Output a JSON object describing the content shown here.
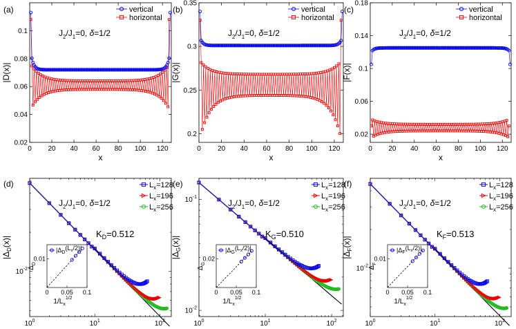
{
  "figure_panels": [
    "(a)",
    "(b)",
    "(c)",
    "(d)",
    "(e)",
    "(f)"
  ],
  "chart_data": [
    {
      "panel": "(a)",
      "type": "line",
      "title": "J2/J1=0, δ=1/2",
      "title_parts": {
        "j": "J",
        "two": "2",
        "sep": "/J",
        "one": "1",
        "rest": "=0, ",
        "delta": "δ",
        "end": "=1/2"
      },
      "xlabel": "x",
      "ylabel": "|D(x)|",
      "xlim": [
        0,
        128
      ],
      "ylim": [
        0.02,
        0.12
      ],
      "xticks": [
        0,
        20,
        40,
        60,
        80,
        100,
        120
      ],
      "xtick_labels": [
        "0",
        "20",
        "40",
        "60",
        "80",
        "100",
        "120"
      ],
      "yticks": [
        0.02,
        0.04,
        0.06,
        0.08,
        0.1
      ],
      "ytick_labels": [
        "0.02",
        "0.04",
        "0.06",
        "0.08",
        "0.1"
      ],
      "legend": [
        "vertical",
        "horizontal"
      ],
      "series": [
        {
          "name": "vertical",
          "color": "#0000ee",
          "marker": "circle",
          "profile": {
            "edge": 0.113,
            "edge2": 0.085,
            "bulk": 0.072
          }
        },
        {
          "name": "horizontal",
          "color": "#ee0000",
          "marker": "square",
          "profile": {
            "upper_edge": 0.076,
            "upper_bulk": 0.064,
            "lower_edge": 0.044,
            "lower_bulk": 0.058,
            "start": 0.108
          }
        }
      ]
    },
    {
      "panel": "(b)",
      "type": "line",
      "title": "J2/J1=0, δ=1/2",
      "title_parts": {
        "j": "J",
        "two": "2",
        "sep": "/J",
        "one": "1",
        "rest": "=0, ",
        "delta": "δ",
        "end": "=1/2"
      },
      "xlabel": "x",
      "ylabel": "|G(x)|",
      "xlim": [
        0,
        128
      ],
      "ylim": [
        0.19,
        0.35
      ],
      "xticks": [
        0,
        20,
        40,
        60,
        80,
        100,
        120
      ],
      "xtick_labels": [
        "0",
        "20",
        "40",
        "60",
        "80",
        "100",
        "120"
      ],
      "yticks": [
        0.2,
        0.25,
        0.3,
        0.35
      ],
      "ytick_labels": [
        "0.2",
        "0.25",
        "0.3",
        "0.35"
      ],
      "legend": [
        "vertical",
        "horizontal"
      ],
      "series": [
        {
          "name": "vertical",
          "color": "#0000ee",
          "marker": "circle",
          "profile": {
            "edge": 0.34,
            "edge2": 0.31,
            "bulk": 0.301
          }
        },
        {
          "name": "horizontal",
          "color": "#ee0000",
          "marker": "square",
          "profile": {
            "upper_edge": 0.283,
            "upper_bulk": 0.268,
            "lower_edge": 0.195,
            "lower_bulk": 0.244,
            "start": 0.33
          }
        }
      ]
    },
    {
      "panel": "(c)",
      "type": "line",
      "title": "J2/J1=0, δ=1/2",
      "title_parts": {
        "j": "J",
        "two": "2",
        "sep": "/J",
        "one": "1",
        "rest": "=0, ",
        "delta": "δ",
        "end": "=1/2"
      },
      "xlabel": "x",
      "ylabel": "|F(x)|",
      "xlim": [
        0,
        128
      ],
      "ylim": [
        0.01,
        0.18
      ],
      "xticks": [
        0,
        20,
        40,
        60,
        80,
        100,
        120
      ],
      "xtick_labels": [
        "0",
        "20",
        "40",
        "60",
        "80",
        "100",
        "120"
      ],
      "yticks": [
        0.02,
        0.06,
        0.1,
        0.14,
        0.18
      ],
      "ytick_labels": [
        "0.02",
        "0.06",
        "0.1",
        "0.14",
        "0.18"
      ],
      "legend": [
        "vertical",
        "horizontal"
      ],
      "series": [
        {
          "name": "vertical",
          "color": "#0000ee",
          "marker": "circle",
          "profile": {
            "edge": 0.105,
            "edge2": 0.12,
            "bulk": 0.125
          }
        },
        {
          "name": "horizontal",
          "color": "#ee0000",
          "marker": "square",
          "profile": {
            "upper_edge": 0.038,
            "upper_bulk": 0.032,
            "lower_edge": 0.016,
            "lower_bulk": 0.024,
            "start": 0.03
          }
        }
      ]
    },
    {
      "panel": "(d)",
      "type": "scatter",
      "title": "J2/J1=0, δ=1/2",
      "title_parts": {
        "j": "J",
        "two": "2",
        "sep": "/J",
        "one": "1",
        "rest": "=0, ",
        "delta": "δ",
        "end": "=1/2"
      },
      "xlabel": "x",
      "ylabel": "|ΔD(x)|",
      "ylabel_main": "|Δ",
      "ylabel_sub": "D",
      "ylabel_tail": "(x)|",
      "xscale": "log",
      "yscale": "log",
      "xlim": [
        1,
        150
      ],
      "ylim": [
        0.0045,
        0.052
      ],
      "xticks": [
        1,
        10,
        100
      ],
      "xtick_labels": [
        [
          "10",
          "0"
        ],
        [
          "10",
          "1"
        ],
        [
          "10",
          "2"
        ]
      ],
      "yticks": [
        0.01
      ],
      "ytick_labels": [
        [
          "10",
          "-2"
        ]
      ],
      "legend": [
        [
          "L",
          "x",
          "=128"
        ],
        [
          "L",
          "x",
          "=196"
        ],
        [
          "L",
          "x",
          "=256"
        ]
      ],
      "exponent_label": {
        "main": "K",
        "sub": "D",
        "rest": "=0.512"
      },
      "fit": {
        "amplitude": 0.0478,
        "exponent": 0.512
      },
      "series": [
        {
          "name": "Lx=128",
          "color": "#0000ee",
          "marker": "square",
          "xmax": 64,
          "tail_boost": 0.45
        },
        {
          "name": "Lx=196",
          "color": "#ee0000",
          "marker": "triangle-right",
          "xmax": 98,
          "tail_boost": 0.35
        },
        {
          "name": "Lx=256",
          "color": "#22bb22",
          "marker": "circle",
          "xmax": 128,
          "tail_boost": 0.28
        }
      ],
      "inset": {
        "xlabel_parts": [
          "1/L",
          "x",
          "1/2"
        ],
        "ylabel_main": "Δ",
        "ylabel_sub": "D",
        "legend_parts": [
          "|Δ",
          "D",
          "(L",
          "x",
          "/2)|"
        ],
        "xlim": [
          0,
          0.1
        ],
        "ylim": [
          0,
          0.015
        ],
        "xticks": [
          0,
          0.05,
          0.1
        ],
        "xtick_labels": [
          "0",
          "0.05",
          "0.1"
        ],
        "yticks": [
          0.01
        ],
        "ytick_labels": [
          "0.01"
        ],
        "x": [
          0.0625,
          0.0714,
          0.0801,
          0.0884
        ],
        "y": [
          0.0097,
          0.0111,
          0.0124,
          0.0137
        ]
      }
    },
    {
      "panel": "(e)",
      "type": "scatter",
      "title": "J2/J1=0, δ=1/2",
      "title_parts": {
        "j": "J",
        "two": "2",
        "sep": "/J",
        "one": "1",
        "rest": "=0, ",
        "delta": "δ",
        "end": "=1/2"
      },
      "xlabel": "x",
      "ylabel": "|ΔG(x)|",
      "ylabel_main": "|Δ",
      "ylabel_sub": "G",
      "ylabel_tail": "(x)|",
      "xscale": "log",
      "yscale": "log",
      "xlim": [
        1,
        150
      ],
      "ylim": [
        0.0088,
        0.155
      ],
      "xticks": [
        1,
        10,
        100
      ],
      "xtick_labels": [
        [
          "10",
          "0"
        ],
        [
          "10",
          "1"
        ],
        [
          "10",
          "2"
        ]
      ],
      "yticks": [
        0.01,
        0.1
      ],
      "ytick_labels": [
        [
          "10",
          "-2"
        ],
        [
          "10",
          "-1"
        ]
      ],
      "legend": [
        [
          "L",
          "x",
          "=128"
        ],
        [
          "L",
          "x",
          "=196"
        ],
        [
          "L",
          "x",
          "=256"
        ]
      ],
      "exponent_label": {
        "main": "K",
        "sub": "G",
        "rest": "=0.510"
      },
      "fit": {
        "amplitude": 0.142,
        "exponent": 0.51
      },
      "series": [
        {
          "name": "Lx=128",
          "color": "#0000ee",
          "marker": "square",
          "xmax": 64,
          "tail_boost": 0.45
        },
        {
          "name": "Lx=196",
          "color": "#ee0000",
          "marker": "triangle-right",
          "xmax": 98,
          "tail_boost": 0.35
        },
        {
          "name": "Lx=256",
          "color": "#22bb22",
          "marker": "circle",
          "xmax": 128,
          "tail_boost": 0.28
        }
      ],
      "inset": {
        "xlabel_parts": [
          "1/L",
          "x",
          "1/2"
        ],
        "ylabel_main": "Δ",
        "ylabel_sub": "G",
        "legend_parts": [
          "|Δ",
          "G",
          "(L",
          "x",
          "/2)|"
        ],
        "xlim": [
          0,
          0.1
        ],
        "ylim": [
          0,
          0.03
        ],
        "xticks": [
          0,
          0.05,
          0.1
        ],
        "xtick_labels": [
          "0",
          "0.05",
          "0.1"
        ],
        "yticks": [
          0.02
        ],
        "ytick_labels": [
          "0.02"
        ],
        "x": [
          0.0625,
          0.0714,
          0.0801,
          0.0884
        ],
        "y": [
          0.0181,
          0.0207,
          0.0232,
          0.0256
        ]
      }
    },
    {
      "panel": "(f)",
      "type": "scatter",
      "title": "J2/J1=0, δ=1/2",
      "title_parts": {
        "j": "J",
        "two": "2",
        "sep": "/J",
        "one": "1",
        "rest": "=0, ",
        "delta": "δ",
        "end": "=1/2"
      },
      "xlabel": "x",
      "ylabel": "|ΔF(x)|",
      "ylabel_main": "|Δ",
      "ylabel_sub": "F",
      "ylabel_tail": "(x)|",
      "xscale": "log",
      "yscale": "log",
      "xlim": [
        1,
        150
      ],
      "ylim": [
        0.0042,
        0.05
      ],
      "xticks": [
        1,
        10,
        100
      ],
      "xtick_labels": [
        [
          "10",
          "0"
        ],
        [
          "10",
          "1"
        ],
        [
          "10",
          "2"
        ]
      ],
      "yticks": [
        0.01
      ],
      "ytick_labels": [
        [
          "10",
          "-2"
        ]
      ],
      "legend": [
        [
          "L",
          "x",
          "=128"
        ],
        [
          "L",
          "x",
          "=196"
        ],
        [
          "L",
          "x",
          "=256"
        ]
      ],
      "exponent_label": {
        "main": "K",
        "sub": "F",
        "rest": "=0.513"
      },
      "fit": {
        "amplitude": 0.0452,
        "exponent": 0.513
      },
      "series": [
        {
          "name": "Lx=128",
          "color": "#0000ee",
          "marker": "square",
          "xmax": 64,
          "tail_boost": 0.45
        },
        {
          "name": "Lx=196",
          "color": "#ee0000",
          "marker": "triangle-right",
          "xmax": 98,
          "tail_boost": 0.35
        },
        {
          "name": "Lx=256",
          "color": "#22bb22",
          "marker": "circle",
          "xmax": 128,
          "tail_boost": 0.28
        }
      ],
      "inset": {
        "xlabel_parts": [
          "1/L",
          "x",
          "1/2"
        ],
        "ylabel_main": "Δ",
        "ylabel_sub": "F",
        "legend_parts": [
          "|Δ",
          "F",
          "(L",
          "x",
          "/2)|"
        ],
        "xlim": [
          0,
          0.1
        ],
        "ylim": [
          0,
          0.015
        ],
        "xticks": [
          0,
          0.05,
          0.1
        ],
        "xtick_labels": [
          "0",
          "0.05",
          "0.1"
        ],
        "yticks": [
          0.01
        ],
        "ytick_labels": [
          "0.01"
        ],
        "x": [
          0.0625,
          0.0714,
          0.0801,
          0.0884
        ],
        "y": [
          0.0092,
          0.0105,
          0.0118,
          0.013
        ]
      }
    }
  ]
}
